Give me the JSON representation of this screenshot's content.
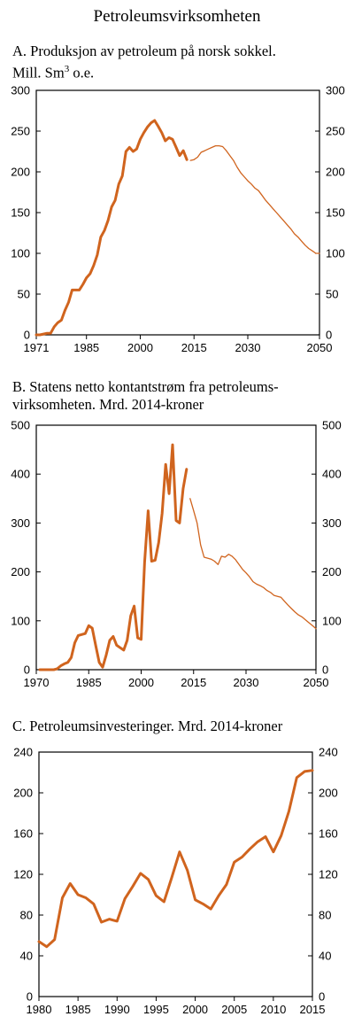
{
  "title": "Petroleumsvirksomheten",
  "colors": {
    "line": "#d0641e",
    "axis": "#000000"
  },
  "chart_data": [
    {
      "type": "line",
      "title_main": "A. Produksjon av petroleum på norsk sokkel.",
      "title_unit": "Mill. Sm",
      "title_sup": "3",
      "title_suffix": " o.e.",
      "xlim": [
        1971,
        2050
      ],
      "ylim": [
        0,
        300
      ],
      "yticks": [
        0,
        50,
        100,
        150,
        200,
        250,
        300
      ],
      "xticks": [
        1971,
        1985,
        2000,
        2015,
        2030,
        2050
      ],
      "series": [
        {
          "style": "historical",
          "x": [
            1971,
            1972,
            1973,
            1974,
            1975,
            1976,
            1977,
            1978,
            1979,
            1980,
            1981,
            1982,
            1983,
            1984,
            1985,
            1986,
            1987,
            1988,
            1989,
            1990,
            1991,
            1992,
            1993,
            1994,
            1995,
            1996,
            1997,
            1998,
            1999,
            2000,
            2001,
            2002,
            2003,
            2004,
            2005,
            2006,
            2007,
            2008,
            2009,
            2010,
            2011,
            2012,
            2013
          ],
          "y": [
            0,
            0,
            1,
            2,
            2,
            10,
            15,
            18,
            30,
            40,
            55,
            55,
            55,
            62,
            70,
            75,
            85,
            98,
            120,
            128,
            140,
            157,
            165,
            185,
            195,
            225,
            230,
            225,
            228,
            240,
            248,
            255,
            260,
            263,
            256,
            248,
            238,
            242,
            240,
            230,
            220,
            226,
            215
          ]
        },
        {
          "style": "projection",
          "x": [
            2014,
            2015,
            2016,
            2017,
            2018,
            2019,
            2020,
            2021,
            2022,
            2023,
            2024,
            2025,
            2026,
            2027,
            2028,
            2029,
            2030,
            2031,
            2032,
            2033,
            2034,
            2035,
            2036,
            2037,
            2038,
            2039,
            2040,
            2041,
            2042,
            2043,
            2044,
            2045,
            2046,
            2047,
            2048,
            2049,
            2050
          ],
          "y": [
            214,
            215,
            218,
            224,
            226,
            228,
            230,
            232,
            232,
            231,
            226,
            220,
            214,
            206,
            199,
            194,
            189,
            185,
            180,
            177,
            171,
            165,
            160,
            155,
            150,
            145,
            140,
            135,
            130,
            124,
            120,
            115,
            110,
            106,
            103,
            100,
            100
          ]
        }
      ]
    },
    {
      "type": "line",
      "title_line1": "B. Statens netto kontantstrøm fra petroleums-",
      "title_line2": "virksomheten. Mrd. 2014-kroner",
      "xlim": [
        1970,
        2050
      ],
      "ylim": [
        0,
        500
      ],
      "yticks": [
        0,
        100,
        200,
        300,
        400,
        500
      ],
      "xticks": [
        1970,
        1985,
        2000,
        2015,
        2030,
        2050
      ],
      "series": [
        {
          "style": "historical",
          "x": [
            1971,
            1972,
            1973,
            1974,
            1975,
            1976,
            1977,
            1978,
            1979,
            1980,
            1981,
            1982,
            1983,
            1984,
            1985,
            1986,
            1987,
            1988,
            1989,
            1990,
            1991,
            1992,
            1993,
            1994,
            1995,
            1996,
            1997,
            1998,
            1999,
            2000,
            2001,
            2002,
            2003,
            2004,
            2005,
            2006,
            2007,
            2008,
            2009,
            2010,
            2011,
            2012,
            2013
          ],
          "y": [
            0,
            0,
            0,
            0,
            0,
            2,
            8,
            12,
            15,
            25,
            55,
            70,
            72,
            74,
            90,
            85,
            50,
            15,
            5,
            30,
            60,
            68,
            50,
            45,
            40,
            60,
            110,
            130,
            65,
            62,
            220,
            325,
            222,
            224,
            260,
            320,
            420,
            360,
            460,
            305,
            300,
            370,
            410
          ]
        },
        {
          "style": "projection",
          "x": [
            2014,
            2015,
            2016,
            2017,
            2018,
            2019,
            2020,
            2021,
            2022,
            2023,
            2024,
            2025,
            2026,
            2027,
            2028,
            2029,
            2030,
            2031,
            2032,
            2033,
            2034,
            2035,
            2036,
            2037,
            2038,
            2039,
            2040,
            2041,
            2042,
            2043,
            2044,
            2045,
            2046,
            2047,
            2048,
            2049,
            2050
          ],
          "y": [
            350,
            325,
            300,
            255,
            230,
            228,
            226,
            222,
            215,
            232,
            230,
            236,
            232,
            225,
            215,
            205,
            198,
            190,
            180,
            175,
            172,
            168,
            162,
            158,
            152,
            150,
            148,
            140,
            132,
            125,
            118,
            112,
            108,
            102,
            96,
            90,
            84
          ]
        }
      ]
    },
    {
      "type": "line",
      "title": "C. Petroleumsinvesteringer. Mrd. 2014-kroner",
      "xlim": [
        1980,
        2015
      ],
      "ylim": [
        0,
        240
      ],
      "yticks": [
        0,
        40,
        80,
        120,
        160,
        200,
        240
      ],
      "xticks": [
        1980,
        1985,
        1990,
        1995,
        2000,
        2005,
        2010,
        2015
      ],
      "series": [
        {
          "style": "historical",
          "x": [
            1980,
            1981,
            1982,
            1983,
            1984,
            1985,
            1986,
            1987,
            1988,
            1989,
            1990,
            1991,
            1992,
            1993,
            1994,
            1995,
            1996,
            1997,
            1998,
            1999,
            2000,
            2001,
            2002,
            2003,
            2004,
            2005,
            2006,
            2007,
            2008,
            2009,
            2010,
            2011,
            2012,
            2013,
            2014,
            2015
          ],
          "y": [
            54,
            49,
            56,
            97,
            111,
            100,
            97,
            91,
            73,
            76,
            74,
            96,
            108,
            121,
            115,
            99,
            93,
            117,
            142,
            124,
            95,
            91,
            86,
            99,
            110,
            132,
            137,
            145,
            152,
            157,
            142,
            158,
            182,
            215,
            221,
            222
          ]
        }
      ]
    }
  ]
}
